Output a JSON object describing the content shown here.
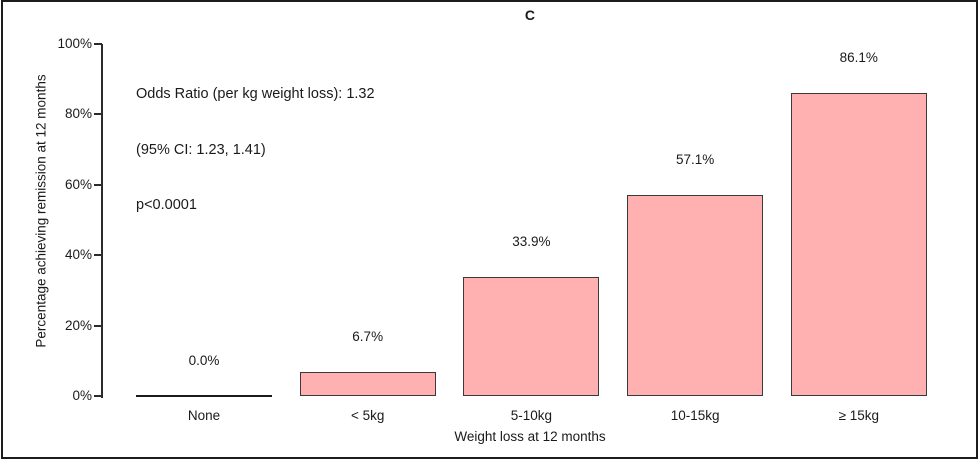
{
  "figure": {
    "panel_label": "C"
  },
  "chart_data": {
    "type": "bar",
    "title": "C",
    "categories": [
      "None",
      "< 5kg",
      "5-10kg",
      "10-15kg",
      "≥ 15kg"
    ],
    "values": [
      0.0,
      6.7,
      33.9,
      57.1,
      86.1
    ],
    "value_labels": [
      "0.0%",
      "6.7%",
      "33.9%",
      "57.1%",
      "86.1%"
    ],
    "xlabel": "Weight loss at 12 months",
    "ylabel": "Percentage achieving remission at 12 months",
    "ylim": [
      0,
      100
    ],
    "ytick_values": [
      0,
      20,
      40,
      60,
      80,
      100
    ],
    "ytick_labels": [
      "0%",
      "20%",
      "40%",
      "60%",
      "80%",
      "100%"
    ],
    "annotation": [
      "Odds Ratio (per kg weight loss): 1.32",
      "(95% CI: 1.23, 1.41)",
      "p<0.0001"
    ],
    "bar_fill": "#ffb1b1",
    "bar_border": "#3a3a3a",
    "axis_color": "#2b2b2b",
    "grid": false,
    "legend": "none"
  }
}
